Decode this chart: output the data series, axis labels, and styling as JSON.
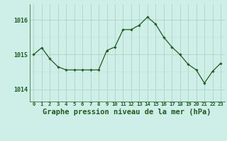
{
  "x": [
    0,
    1,
    2,
    3,
    4,
    5,
    6,
    7,
    8,
    9,
    10,
    11,
    12,
    13,
    14,
    15,
    16,
    17,
    18,
    19,
    20,
    21,
    22,
    23
  ],
  "y": [
    1015.0,
    1015.2,
    1014.88,
    1014.65,
    1014.56,
    1014.56,
    1014.56,
    1014.56,
    1014.56,
    1015.12,
    1015.22,
    1015.72,
    1015.72,
    1015.85,
    1016.08,
    1015.88,
    1015.5,
    1015.22,
    1015.0,
    1014.72,
    1014.56,
    1014.18,
    1014.52,
    1014.75
  ],
  "line_color": "#1e5c1e",
  "marker": "D",
  "marker_size": 1.8,
  "linewidth": 0.9,
  "bg_color": "#ceeee8",
  "grid_color_major": "#aaccbb",
  "grid_color_minor": "#bbddd4",
  "title": "Graphe pression niveau de la mer (hPa)",
  "title_fontsize": 7.5,
  "ytick_labels": [
    "1014",
    "1015",
    "1016"
  ],
  "yticks": [
    1014,
    1015,
    1016
  ],
  "ylim": [
    1013.65,
    1016.45
  ],
  "xlim": [
    -0.5,
    23.5
  ],
  "xticks": [
    0,
    1,
    2,
    3,
    4,
    5,
    6,
    7,
    8,
    9,
    10,
    11,
    12,
    13,
    14,
    15,
    16,
    17,
    18,
    19,
    20,
    21,
    22,
    23
  ],
  "xtick_labels": [
    "0",
    "1",
    "2",
    "3",
    "4",
    "5",
    "6",
    "7",
    "8",
    "9",
    "10",
    "11",
    "12",
    "13",
    "14",
    "15",
    "16",
    "17",
    "18",
    "19",
    "20",
    "21",
    "22",
    "23"
  ]
}
